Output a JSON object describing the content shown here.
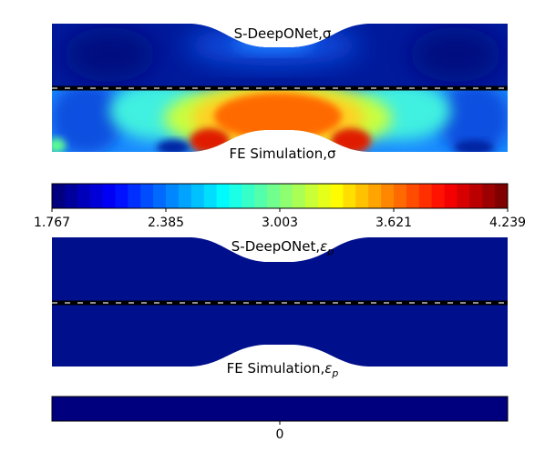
{
  "panels": {
    "stress_top_label": "S-DeepONet,σ",
    "stress_bottom_label": "FE Simulation,σ",
    "strain_top_label_prefix": "S-DeepONet,",
    "strain_bottom_label_prefix": "FE Simulation,",
    "strain_symbol": "ε",
    "strain_subscript": "p"
  },
  "colorbar_stress": {
    "colormap": "jet",
    "min": 1.767,
    "max": 4.239,
    "levels": 36,
    "ticks": [
      "1.767",
      "2.385",
      "3.003",
      "3.621",
      "4.239"
    ]
  },
  "colorbar_strain": {
    "color": "#00007f",
    "ticks": [
      "0"
    ]
  },
  "colors": {
    "field_low": "#000f8c",
    "divider": "#000000",
    "divider_dash": "#ffffff"
  }
}
